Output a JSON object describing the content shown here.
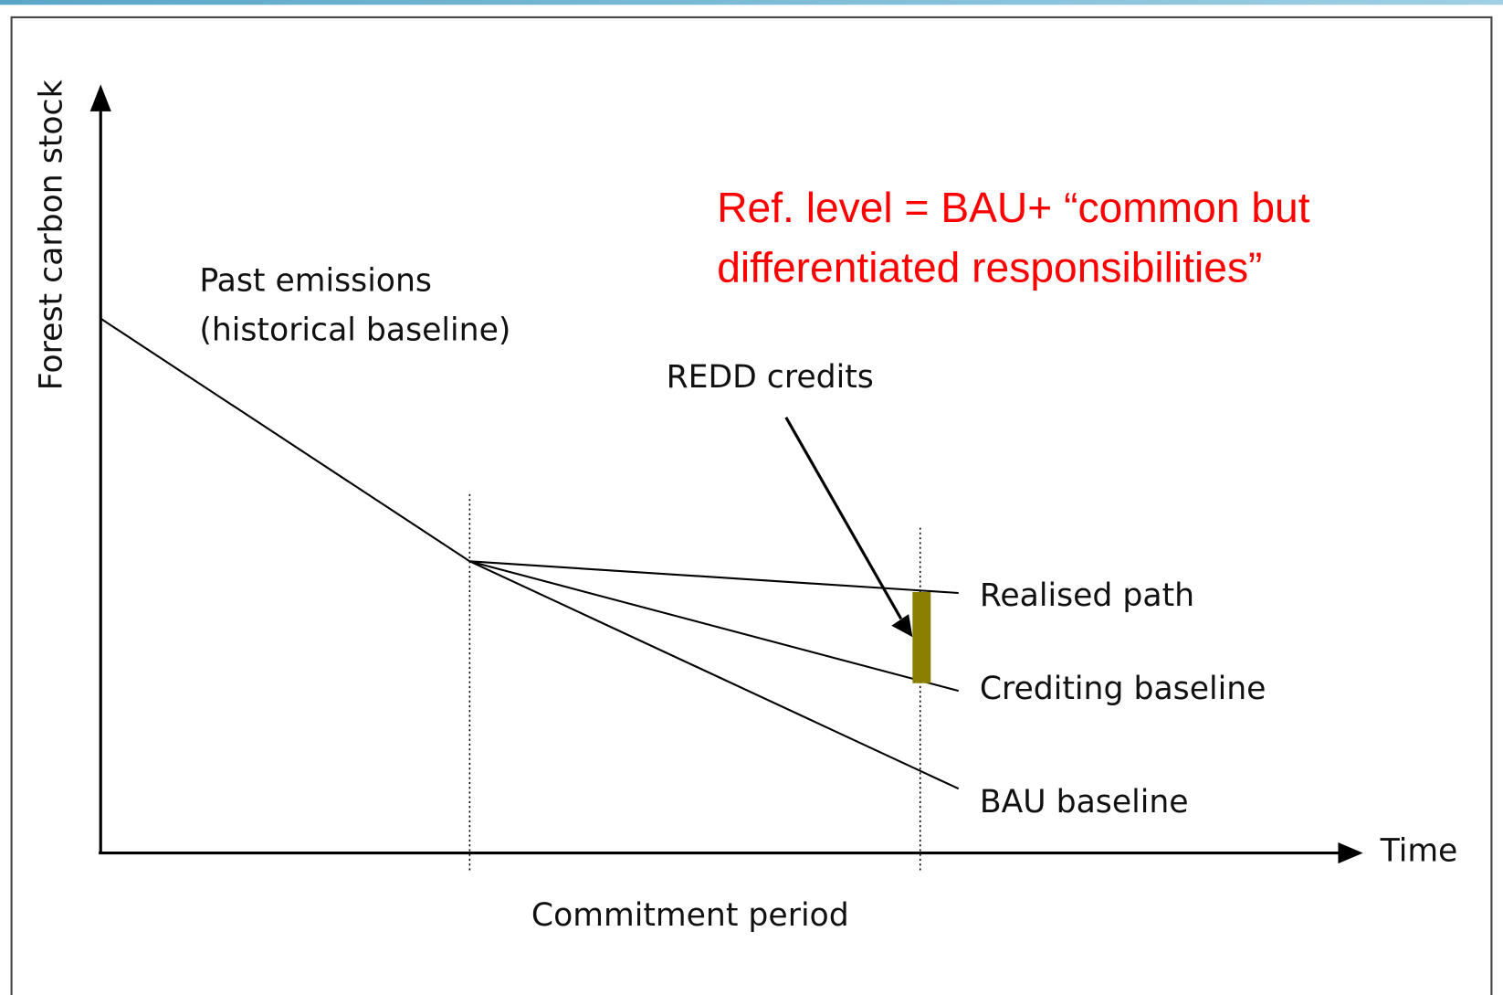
{
  "diagram": {
    "y_axis_label": "Forest carbon stock",
    "x_axis_label": "Time",
    "historical_label": [
      "Past emissions",
      "(historical baseline)"
    ],
    "credits_label": "REDD credits",
    "path_labels": [
      "Realised path",
      "Crediting baseline",
      "BAU baseline"
    ],
    "period_label": "Commitment period",
    "annotation": [
      "Ref. level = BAU+ “common but",
      "differentiated responsibilities”"
    ]
  }
}
